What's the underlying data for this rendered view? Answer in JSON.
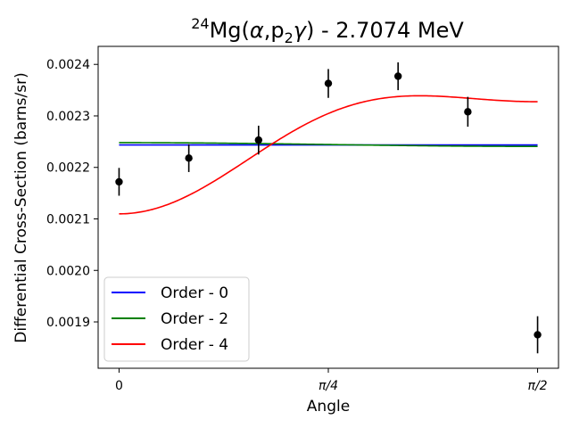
{
  "chart_data": {
    "type": "line",
    "title_parts": {
      "iso": "24",
      "pre": "Mg(",
      "alpha": "α",
      "mid": ",p",
      "sub": "2",
      "gamma": "γ",
      "post": ") - 2.7074 MeV"
    },
    "xlabel": "Angle",
    "ylabel": "Differential Cross-Section (barns/sr)",
    "xlim": [
      -0.0785,
      1.6493
    ],
    "ylim": [
      0.00181,
      0.002435
    ],
    "x_ticks": [
      {
        "value": 0,
        "label": "0"
      },
      {
        "value": 0.785398,
        "label": "π/4"
      },
      {
        "value": 1.570796,
        "label": "π/2"
      }
    ],
    "y_ticks": [
      {
        "value": 0.0019,
        "label": "0.0019"
      },
      {
        "value": 0.002,
        "label": "0.0020"
      },
      {
        "value": 0.0021,
        "label": "0.0021"
      },
      {
        "value": 0.0022,
        "label": "0.0022"
      },
      {
        "value": 0.0023,
        "label": "0.0023"
      },
      {
        "value": 0.0024,
        "label": "0.0024"
      }
    ],
    "grid": false,
    "legend_position": "lower-left",
    "data_points": {
      "color": "#000000",
      "x": [
        0.0,
        0.2618,
        0.5236,
        0.7854,
        1.0472,
        1.309,
        1.5708
      ],
      "y": [
        0.002172,
        0.002218,
        0.002253,
        0.002363,
        0.002377,
        0.002308,
        0.001875
      ],
      "err": [
        2.7e-05,
        2.7e-05,
        2.8e-05,
        2.8e-05,
        2.7e-05,
        2.9e-05,
        3.6e-05
      ]
    },
    "series": [
      {
        "name": "Order - 0",
        "color": "#0000ff",
        "coeffs": [
          0.0022435
        ]
      },
      {
        "name": "Order - 2",
        "color": "#008000",
        "coeffs": [
          0.0022432,
          4.9e-06
        ]
      },
      {
        "name": "Order - 4",
        "color": "#ff0000",
        "coeffs": [
          0.0023008,
          -0.0001124,
          -7.86e-05
        ]
      }
    ]
  }
}
